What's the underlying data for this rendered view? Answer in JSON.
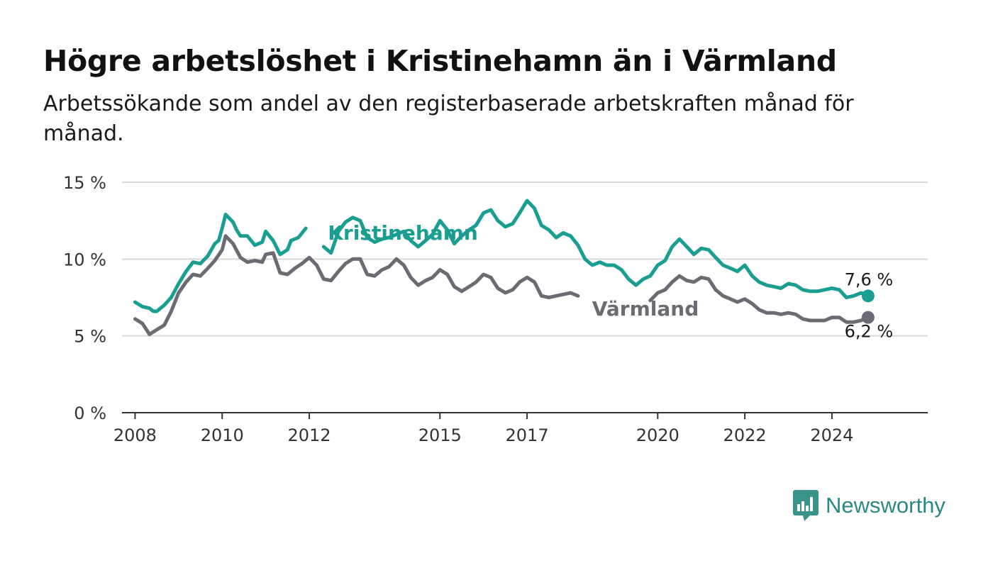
{
  "header": {
    "title": "Högre arbetslöshet i Kristinehamn än i Värmland",
    "subtitle": "Arbetssökande som andel av den registerbaserade arbetskraften månad för månad."
  },
  "brand": {
    "name": "Newsworthy",
    "color": "#2a8a83",
    "icon": "bar-chart-speech-bubble-icon"
  },
  "chart_data": {
    "type": "line",
    "title": "",
    "xlabel": "",
    "ylabel": "",
    "xlim": [
      2007.7,
      2026.2
    ],
    "ylim": [
      0,
      15
    ],
    "y_ticks": [
      {
        "value": 0,
        "label": "0 %"
      },
      {
        "value": 5,
        "label": "5 %"
      },
      {
        "value": 10,
        "label": "10 %"
      },
      {
        "value": 15,
        "label": "15 %"
      }
    ],
    "x_ticks": [
      {
        "value": 2008,
        "label": "2008"
      },
      {
        "value": 2010,
        "label": "2010"
      },
      {
        "value": 2012,
        "label": "2012"
      },
      {
        "value": 2015,
        "label": "2015"
      },
      {
        "value": 2017,
        "label": "2017"
      },
      {
        "value": 2020,
        "label": "2020"
      },
      {
        "value": 2022,
        "label": "2022"
      },
      {
        "value": 2024,
        "label": "2024"
      }
    ],
    "grid": true,
    "legend": "direct labels on lines",
    "series": [
      {
        "name": "Kristinehamn",
        "color": "#1a9e92",
        "end_label": "7,6 %",
        "points": [
          [
            2008.0,
            7.2
          ],
          [
            2008.17,
            6.9
          ],
          [
            2008.33,
            6.8
          ],
          [
            2008.42,
            6.6
          ],
          [
            2008.5,
            6.6
          ],
          [
            2008.67,
            7.0
          ],
          [
            2008.83,
            7.5
          ],
          [
            2009.0,
            8.4
          ],
          [
            2009.17,
            9.2
          ],
          [
            2009.33,
            9.8
          ],
          [
            2009.5,
            9.7
          ],
          [
            2009.67,
            10.2
          ],
          [
            2009.83,
            11.0
          ],
          [
            2009.92,
            11.2
          ],
          [
            2010.0,
            12.0
          ],
          [
            2010.08,
            12.9
          ],
          [
            2010.25,
            12.4
          ],
          [
            2010.33,
            11.9
          ],
          [
            2010.42,
            11.5
          ],
          [
            2010.58,
            11.5
          ],
          [
            2010.75,
            10.9
          ],
          [
            2010.92,
            11.1
          ],
          [
            2011.0,
            11.8
          ],
          [
            2011.17,
            11.2
          ],
          [
            2011.33,
            10.3
          ],
          [
            2011.5,
            10.6
          ],
          [
            2011.58,
            11.2
          ],
          [
            2011.75,
            11.4
          ],
          [
            2011.92,
            12.0
          ]
        ],
        "points2": [
          [
            2012.33,
            10.8
          ],
          [
            2012.5,
            10.4
          ],
          [
            2012.67,
            11.8
          ],
          [
            2012.83,
            12.4
          ],
          [
            2013.0,
            12.7
          ],
          [
            2013.17,
            12.5
          ],
          [
            2013.33,
            11.4
          ],
          [
            2013.5,
            11.1
          ],
          [
            2013.67,
            11.3
          ],
          [
            2013.83,
            11.4
          ],
          [
            2014.0,
            11.6
          ],
          [
            2014.17,
            11.8
          ],
          [
            2014.33,
            11.2
          ],
          [
            2014.5,
            10.8
          ],
          [
            2014.67,
            11.2
          ],
          [
            2014.83,
            11.6
          ],
          [
            2015.0,
            12.5
          ],
          [
            2015.17,
            11.9
          ],
          [
            2015.33,
            11.0
          ],
          [
            2015.5,
            11.5
          ],
          [
            2015.67,
            11.9
          ],
          [
            2015.83,
            12.2
          ],
          [
            2016.0,
            13.0
          ],
          [
            2016.17,
            13.2
          ],
          [
            2016.33,
            12.5
          ],
          [
            2016.5,
            12.1
          ],
          [
            2016.67,
            12.3
          ],
          [
            2016.83,
            13.0
          ],
          [
            2017.0,
            13.8
          ],
          [
            2017.17,
            13.3
          ],
          [
            2017.33,
            12.2
          ],
          [
            2017.5,
            11.9
          ],
          [
            2017.67,
            11.4
          ],
          [
            2017.83,
            11.7
          ],
          [
            2018.0,
            11.5
          ],
          [
            2018.17,
            10.9
          ],
          [
            2018.33,
            10.0
          ],
          [
            2018.5,
            9.6
          ],
          [
            2018.67,
            9.8
          ],
          [
            2018.83,
            9.6
          ],
          [
            2019.0,
            9.6
          ],
          [
            2019.17,
            9.3
          ],
          [
            2019.33,
            8.7
          ],
          [
            2019.5,
            8.3
          ],
          [
            2019.67,
            8.7
          ],
          [
            2019.83,
            8.9
          ],
          [
            2020.0,
            9.6
          ],
          [
            2020.17,
            9.9
          ],
          [
            2020.33,
            10.8
          ],
          [
            2020.5,
            11.3
          ],
          [
            2020.67,
            10.8
          ],
          [
            2020.83,
            10.3
          ],
          [
            2021.0,
            10.7
          ],
          [
            2021.17,
            10.6
          ],
          [
            2021.33,
            10.1
          ],
          [
            2021.5,
            9.6
          ],
          [
            2021.67,
            9.4
          ],
          [
            2021.83,
            9.2
          ],
          [
            2022.0,
            9.6
          ],
          [
            2022.17,
            8.9
          ],
          [
            2022.33,
            8.5
          ],
          [
            2022.5,
            8.3
          ],
          [
            2022.67,
            8.2
          ],
          [
            2022.83,
            8.1
          ],
          [
            2023.0,
            8.4
          ],
          [
            2023.17,
            8.3
          ],
          [
            2023.33,
            8.0
          ],
          [
            2023.5,
            7.9
          ],
          [
            2023.67,
            7.9
          ],
          [
            2023.83,
            8.0
          ],
          [
            2024.0,
            8.1
          ],
          [
            2024.17,
            8.0
          ],
          [
            2024.33,
            7.5
          ],
          [
            2024.5,
            7.6
          ],
          [
            2024.67,
            7.8
          ],
          [
            2024.83,
            7.6
          ]
        ]
      },
      {
        "name": "Värmland",
        "color": "#6b6b73",
        "end_label": "6,2 %",
        "points": [
          [
            2008.0,
            6.1
          ],
          [
            2008.17,
            5.8
          ],
          [
            2008.33,
            5.1
          ],
          [
            2008.5,
            5.4
          ],
          [
            2008.67,
            5.7
          ],
          [
            2008.83,
            6.6
          ],
          [
            2009.0,
            7.8
          ],
          [
            2009.17,
            8.5
          ],
          [
            2009.33,
            9.0
          ],
          [
            2009.5,
            8.9
          ],
          [
            2009.67,
            9.4
          ],
          [
            2009.83,
            9.9
          ],
          [
            2010.0,
            10.6
          ],
          [
            2010.08,
            11.5
          ],
          [
            2010.25,
            11.0
          ],
          [
            2010.42,
            10.1
          ],
          [
            2010.58,
            9.8
          ],
          [
            2010.75,
            9.9
          ],
          [
            2010.92,
            9.8
          ],
          [
            2011.0,
            10.3
          ],
          [
            2011.17,
            10.4
          ],
          [
            2011.33,
            9.1
          ],
          [
            2011.5,
            9.0
          ],
          [
            2011.67,
            9.4
          ],
          [
            2011.83,
            9.7
          ],
          [
            2012.0,
            10.1
          ],
          [
            2012.17,
            9.6
          ],
          [
            2012.33,
            8.7
          ],
          [
            2012.5,
            8.6
          ],
          [
            2012.67,
            9.2
          ],
          [
            2012.83,
            9.7
          ],
          [
            2013.0,
            10.0
          ],
          [
            2013.17,
            10.0
          ],
          [
            2013.33,
            9.0
          ],
          [
            2013.5,
            8.9
          ],
          [
            2013.67,
            9.3
          ],
          [
            2013.83,
            9.5
          ],
          [
            2014.0,
            10.0
          ],
          [
            2014.17,
            9.6
          ],
          [
            2014.33,
            8.8
          ],
          [
            2014.5,
            8.3
          ],
          [
            2014.67,
            8.6
          ],
          [
            2014.83,
            8.8
          ],
          [
            2015.0,
            9.3
          ],
          [
            2015.17,
            9.0
          ],
          [
            2015.33,
            8.2
          ],
          [
            2015.5,
            7.9
          ],
          [
            2015.67,
            8.2
          ],
          [
            2015.83,
            8.5
          ],
          [
            2016.0,
            9.0
          ],
          [
            2016.17,
            8.8
          ],
          [
            2016.33,
            8.1
          ],
          [
            2016.5,
            7.8
          ],
          [
            2016.67,
            8.0
          ],
          [
            2016.83,
            8.5
          ],
          [
            2017.0,
            8.8
          ],
          [
            2017.17,
            8.5
          ],
          [
            2017.33,
            7.6
          ],
          [
            2017.5,
            7.5
          ],
          [
            2017.67,
            7.6
          ],
          [
            2017.83,
            7.7
          ],
          [
            2018.0,
            7.8
          ],
          [
            2018.17,
            7.6
          ]
        ],
        "points2": [
          [
            2019.83,
            7.3
          ],
          [
            2020.0,
            7.8
          ],
          [
            2020.17,
            8.0
          ],
          [
            2020.33,
            8.5
          ],
          [
            2020.5,
            8.9
          ],
          [
            2020.67,
            8.6
          ],
          [
            2020.83,
            8.5
          ],
          [
            2021.0,
            8.8
          ],
          [
            2021.17,
            8.7
          ],
          [
            2021.33,
            8.0
          ],
          [
            2021.5,
            7.6
          ],
          [
            2021.67,
            7.4
          ],
          [
            2021.83,
            7.2
          ],
          [
            2022.0,
            7.4
          ],
          [
            2022.17,
            7.1
          ],
          [
            2022.33,
            6.7
          ],
          [
            2022.5,
            6.5
          ],
          [
            2022.67,
            6.5
          ],
          [
            2022.83,
            6.4
          ],
          [
            2023.0,
            6.5
          ],
          [
            2023.17,
            6.4
          ],
          [
            2023.33,
            6.1
          ],
          [
            2023.5,
            6.0
          ],
          [
            2023.67,
            6.0
          ],
          [
            2023.83,
            6.0
          ],
          [
            2024.0,
            6.2
          ],
          [
            2024.17,
            6.2
          ],
          [
            2024.33,
            5.9
          ],
          [
            2024.5,
            5.9
          ],
          [
            2024.67,
            6.0
          ],
          [
            2024.83,
            6.2
          ]
        ]
      }
    ]
  }
}
